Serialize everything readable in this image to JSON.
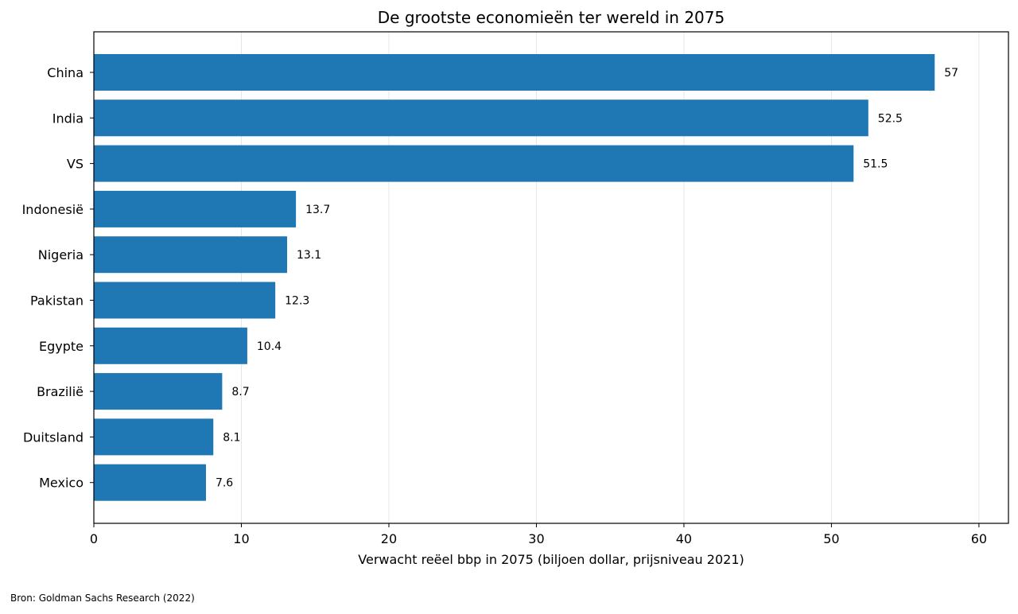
{
  "chart_data": {
    "type": "bar",
    "orientation": "horizontal",
    "title": "De grootste economieën ter wereld in 2075",
    "xlabel": "Verwacht reëel bbp in 2075 (biljoen dollar, prijsniveau 2021)",
    "ylabel": "",
    "categories": [
      "China",
      "India",
      "VS",
      "Indonesië",
      "Nigeria",
      "Pakistan",
      "Egypte",
      "Brazilië",
      "Duitsland",
      "Mexico"
    ],
    "values": [
      57,
      52.5,
      51.5,
      13.7,
      13.1,
      12.3,
      10.4,
      8.7,
      8.1,
      7.6
    ],
    "value_labels": [
      "57",
      "52.5",
      "51.5",
      "13.7",
      "13.1",
      "12.3",
      "10.4",
      "8.7",
      "8.1",
      "7.6"
    ],
    "xlim": [
      0,
      62
    ],
    "xticks": [
      0,
      10,
      20,
      30,
      40,
      50,
      60
    ],
    "grid": "vertical",
    "bar_color": "#1f77b4",
    "source": "Bron: Goldman Sachs Research (2022)"
  }
}
